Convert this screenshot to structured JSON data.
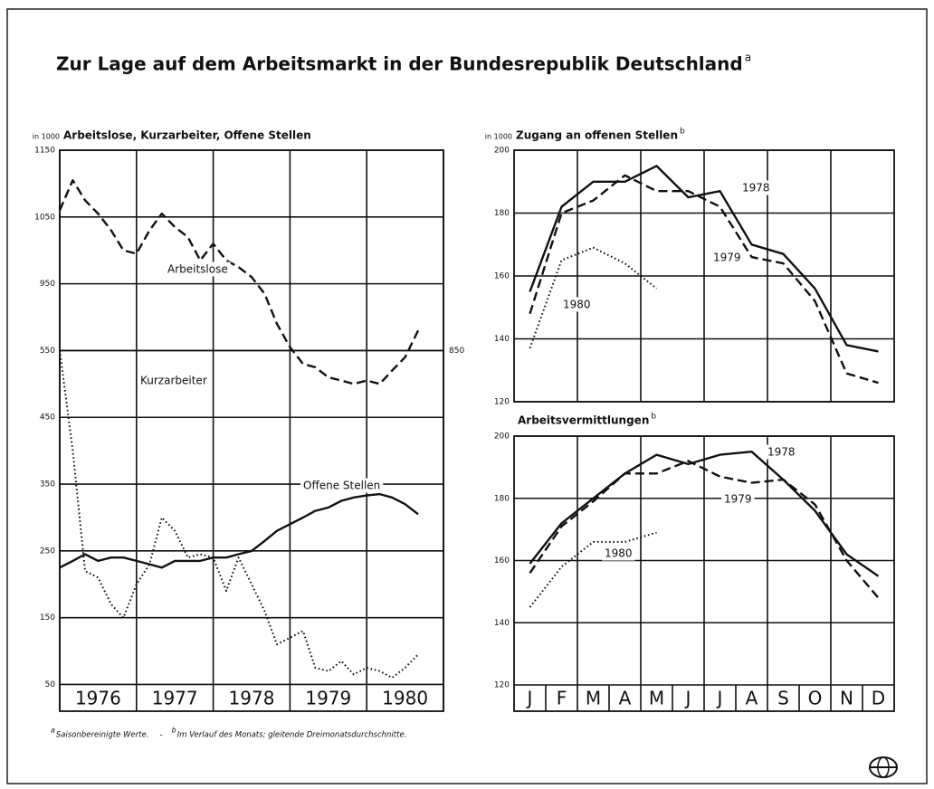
{
  "title": "Zur Lage auf dem Arbeitsmarkt in der Bundesrepublik Deutschland",
  "title_note": "a",
  "chart_data": [
    {
      "type": "line",
      "unit_label": "in 1000",
      "title": "Arbeitslose, Kurzarbeiter, Offene Stellen",
      "categories": [
        "1976",
        "1977",
        "1978",
        "1979",
        "1980"
      ],
      "x": [
        1976,
        1976.17,
        1976.33,
        1976.5,
        1976.67,
        1976.83,
        1977,
        1977.17,
        1977.33,
        1977.5,
        1977.67,
        1977.83,
        1978,
        1978.17,
        1978.33,
        1978.5,
        1978.67,
        1978.83,
        1979,
        1979.17,
        1979.33,
        1979.5,
        1979.67,
        1979.83,
        1980,
        1980.17,
        1980.33,
        1980.5,
        1980.67
      ],
      "xlim": [
        1976,
        1981
      ],
      "xticks": [
        1976,
        1977,
        1978,
        1979,
        1980,
        1981
      ],
      "ylim": [
        10,
        850
      ],
      "yticks": [
        50,
        150,
        250,
        350,
        450,
        550
      ],
      "y2lim": [
        310,
        1150
      ],
      "y2ticks": [
        850,
        950,
        1050,
        1150
      ],
      "grid": true,
      "series": [
        {
          "name": "Arbeitslose",
          "axis": "y2",
          "style": "dashed",
          "color": "#111111",
          "values": [
            1060,
            1105,
            1075,
            1055,
            1030,
            1000,
            995,
            1030,
            1055,
            1035,
            1020,
            985,
            1010,
            985,
            975,
            960,
            935,
            890,
            855,
            830,
            825,
            810,
            805,
            800,
            805,
            800,
            820,
            840,
            880
          ]
        },
        {
          "name": "Kurzarbeiter",
          "style": "dotted",
          "color": "#111111",
          "values": [
            550,
            400,
            220,
            210,
            170,
            150,
            200,
            230,
            300,
            280,
            240,
            245,
            240,
            190,
            240,
            200,
            160,
            110,
            120,
            130,
            75,
            70,
            85,
            65,
            75,
            70,
            60,
            75,
            95
          ]
        },
        {
          "name": "Offene Stellen",
          "style": "solid",
          "color": "#111111",
          "values": [
            225,
            235,
            245,
            235,
            240,
            240,
            235,
            230,
            225,
            235,
            235,
            235,
            240,
            240,
            245,
            250,
            265,
            280,
            290,
            300,
            310,
            315,
            325,
            330,
            333,
            335,
            330,
            320,
            305
          ]
        }
      ]
    },
    {
      "type": "line",
      "unit_label": "in 1000",
      "title": "Zugang an offenen Stellen",
      "title_note": "b",
      "ylim": [
        120,
        200
      ],
      "yticks": [
        120,
        140,
        160,
        180,
        200
      ],
      "grid": true,
      "series": [
        {
          "name": "1978",
          "style": "solid",
          "color": "#111111",
          "values": [
            155,
            182,
            190,
            190,
            195,
            185,
            187,
            170,
            167,
            156,
            138,
            136
          ]
        },
        {
          "name": "1979",
          "style": "dashed",
          "color": "#111111",
          "values": [
            148,
            180,
            184,
            192,
            187,
            187,
            182,
            166,
            164,
            152,
            129,
            126
          ]
        },
        {
          "name": "1980",
          "style": "dotted",
          "color": "#111111",
          "values": [
            137,
            165,
            169,
            164,
            156,
            null,
            null,
            null,
            null,
            null,
            null,
            null
          ]
        }
      ]
    },
    {
      "type": "line",
      "title": "Arbeitsvermittlungen",
      "title_note": "b",
      "categories": [
        "J",
        "F",
        "M",
        "A",
        "M",
        "J",
        "J",
        "A",
        "S",
        "O",
        "N",
        "D"
      ],
      "ylim": [
        120,
        200
      ],
      "yticks": [
        120,
        140,
        160,
        180,
        200
      ],
      "grid": true,
      "series": [
        {
          "name": "1978",
          "style": "solid",
          "color": "#111111",
          "values": [
            159,
            172,
            180,
            188,
            194,
            191,
            194,
            195,
            186,
            176,
            162,
            155
          ]
        },
        {
          "name": "1979",
          "style": "dashed",
          "color": "#111111",
          "values": [
            156,
            171,
            179,
            188,
            188,
            192,
            187,
            185,
            186,
            178,
            160,
            148
          ]
        },
        {
          "name": "1980",
          "style": "dotted",
          "color": "#111111",
          "values": [
            145,
            158,
            166,
            166,
            169,
            null,
            null,
            null,
            null,
            null,
            null,
            null
          ]
        }
      ]
    }
  ],
  "footnotes": [
    {
      "mark": "a",
      "text": "Saisonbereinigte Werte."
    },
    {
      "mark": "b",
      "text": "Im Verlauf des Monats; gleitende Dreimonatsdurchschnitte."
    }
  ],
  "footnote_separator": "-"
}
